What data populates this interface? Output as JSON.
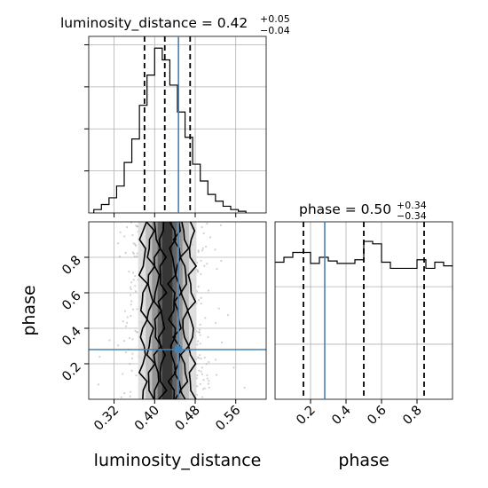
{
  "chart_data": [
    {
      "type": "histogram",
      "panel": "luminosity_distance marginal",
      "title_parameter": "luminosity_distance",
      "title_value": "0.42",
      "title_plus": "+0.05",
      "title_minus": "−0.04",
      "xlim": [
        0.27,
        0.62
      ],
      "ylim": [
        0,
        1.05
      ],
      "bin_edges": [
        0.28,
        0.295,
        0.31,
        0.325,
        0.34,
        0.355,
        0.37,
        0.385,
        0.4,
        0.415,
        0.43,
        0.445,
        0.46,
        0.475,
        0.49,
        0.505,
        0.52,
        0.535,
        0.55,
        0.565,
        0.58
      ],
      "counts": [
        0.02,
        0.05,
        0.09,
        0.16,
        0.3,
        0.44,
        0.64,
        0.82,
        0.98,
        0.91,
        0.76,
        0.6,
        0.45,
        0.29,
        0.19,
        0.11,
        0.07,
        0.04,
        0.02,
        0.01
      ],
      "quantile_lines": [
        0.38,
        0.42,
        0.47
      ],
      "truth": 0.447,
      "grid": true
    },
    {
      "type": "histogram",
      "panel": "phase marginal",
      "title_parameter": "phase",
      "title_value": "0.50",
      "title_plus": "+0.34",
      "title_minus": "−0.34",
      "xlim": [
        0.0,
        1.0
      ],
      "ylim": [
        0,
        1.45
      ],
      "bin_edges": [
        0.0,
        0.05,
        0.1,
        0.15,
        0.2,
        0.25,
        0.3,
        0.35,
        0.4,
        0.45,
        0.5,
        0.55,
        0.6,
        0.65,
        0.7,
        0.75,
        0.8,
        0.85,
        0.9,
        0.95,
        1.0
      ],
      "counts": [
        1.12,
        1.16,
        1.2,
        1.2,
        1.11,
        1.16,
        1.13,
        1.11,
        1.11,
        1.14,
        1.29,
        1.27,
        1.12,
        1.07,
        1.07,
        1.07,
        1.14,
        1.07,
        1.12,
        1.09
      ],
      "quantile_lines": [
        0.16,
        0.5,
        0.84
      ],
      "truth": 0.28,
      "grid": true
    },
    {
      "type": "scatter-contour",
      "panel": "luminosity_distance vs phase",
      "xlabel": "luminosity_distance",
      "ylabel": "phase",
      "xlim": [
        0.27,
        0.62
      ],
      "ylim": [
        0.0,
        1.0
      ],
      "xticks": [
        "0.32",
        "0.40",
        "0.48",
        "0.56"
      ],
      "xtick_values": [
        0.32,
        0.4,
        0.48,
        0.56
      ],
      "yticks": [
        "0.2",
        "0.4",
        "0.6",
        "0.8"
      ],
      "ytick_values": [
        0.2,
        0.4,
        0.6,
        0.8
      ],
      "samples_mean_x": 0.425,
      "samples_sd_x": 0.04,
      "truth": [
        0.447,
        0.28
      ],
      "grid": true
    },
    {
      "type": "axis",
      "panel": "phase axis",
      "xlabel": "phase",
      "xlim": [
        0.0,
        1.0
      ],
      "xticks": [
        "0.2",
        "0.4",
        "0.6",
        "0.8"
      ],
      "xtick_values": [
        0.2,
        0.4,
        0.6,
        0.8
      ]
    }
  ]
}
